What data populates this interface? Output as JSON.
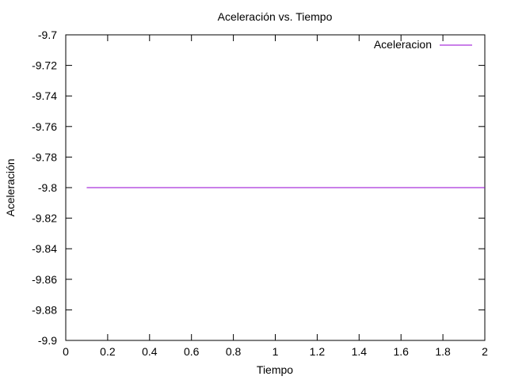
{
  "chart_data": {
    "type": "line",
    "title": "Aceleración vs. Tiempo",
    "xlabel": "Tiempo",
    "ylabel": "Aceleración",
    "xlim": [
      0,
      2
    ],
    "ylim": [
      -9.9,
      -9.7
    ],
    "x_ticks": [
      0,
      0.2,
      0.4,
      0.6,
      0.8,
      1,
      1.2,
      1.4,
      1.6,
      1.8,
      2
    ],
    "x_tick_labels": [
      "0",
      "0.2",
      "0.4",
      "0.6",
      "0.8",
      "1",
      "1.2",
      "1.4",
      "1.6",
      "1.8",
      "2"
    ],
    "y_ticks": [
      -9.7,
      -9.72,
      -9.74,
      -9.76,
      -9.78,
      -9.8,
      -9.82,
      -9.84,
      -9.86,
      -9.88,
      -9.9
    ],
    "y_tick_labels": [
      "-9.7",
      "-9.72",
      "-9.74",
      "-9.76",
      "-9.78",
      "-9.8",
      "-9.82",
      "-9.84",
      "-9.86",
      "-9.88",
      "-9.9"
    ],
    "grid": false,
    "legend_position": "top-right",
    "series": [
      {
        "name": "Aceleracion",
        "color": "#9400d3",
        "x": [
          0.1,
          2
        ],
        "y": [
          -9.8,
          -9.8
        ]
      }
    ]
  }
}
